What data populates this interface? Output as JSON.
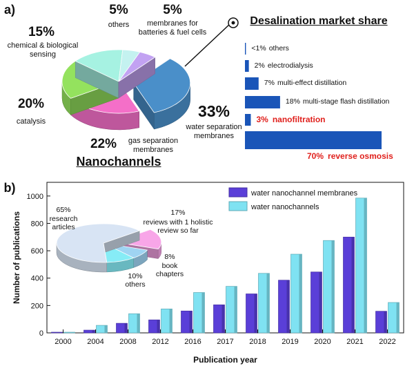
{
  "panels": [
    "a)",
    "b)"
  ],
  "chart_data": [
    {
      "type": "pie",
      "title": "Nanochannels",
      "categories": [
        "water separation membranes",
        "gas separation membranes",
        "catalysis",
        "chemical & biological sensing",
        "others",
        "membranes for batteries & fuel cells"
      ],
      "values": [
        33,
        22,
        20,
        15,
        5,
        5
      ],
      "value_labels": [
        "33%",
        "22%",
        "20%",
        "15%",
        "5%",
        "5%"
      ],
      "colors": [
        "#4a8fc9",
        "#f46fc8",
        "#94e25e",
        "#a6f2e2",
        "#c4f2f0",
        "#c2a2f2"
      ]
    },
    {
      "type": "bar",
      "orientation": "horizontal",
      "title": "Desalination market share",
      "categories": [
        "others",
        "electrodialysis",
        "multi-effect distillation",
        "multi-stage flash distillation",
        "nanofiltration",
        "reverse osmosis"
      ],
      "values": [
        0.5,
        2,
        7,
        18,
        3,
        70
      ],
      "value_labels": [
        "<1%",
        "2%",
        "7%",
        "18%",
        "3%",
        "70%"
      ],
      "label_colors": [
        "#111111",
        "#111111",
        "#111111",
        "#111111",
        "#e0201c",
        "#e0201c"
      ],
      "color": "#1a55b8"
    },
    {
      "type": "bar",
      "xlabel": "Publication year",
      "ylabel": "Number of publications",
      "categories": [
        "2000",
        "2004",
        "2008",
        "2012",
        "2016",
        "2017",
        "2018",
        "2019",
        "2020",
        "2021",
        "2022"
      ],
      "series": [
        {
          "name": "water nanochannel membranes",
          "color": "#5a3fd8",
          "values": [
            5,
            20,
            70,
            95,
            160,
            205,
            285,
            385,
            445,
            700,
            158
          ]
        },
        {
          "name": "water nanochannels",
          "color": "#7fe2f2",
          "values": [
            5,
            55,
            140,
            175,
            295,
            340,
            435,
            575,
            675,
            985,
            222
          ]
        }
      ],
      "ylim": [
        0,
        1100
      ],
      "yticks": [
        0,
        200,
        400,
        600,
        800,
        1000
      ],
      "legend": "upper right"
    },
    {
      "type": "pie",
      "categories": [
        "reviews with 1 holistic review so far",
        "book chapters",
        "others",
        "research articles"
      ],
      "values": [
        17,
        8,
        10,
        65
      ],
      "value_labels": [
        "17%",
        "8%",
        "10%",
        "65%"
      ],
      "colors": [
        "#f8a6e8",
        "#9fd4f2",
        "#86ecf6",
        "#d8e4f4"
      ]
    }
  ]
}
